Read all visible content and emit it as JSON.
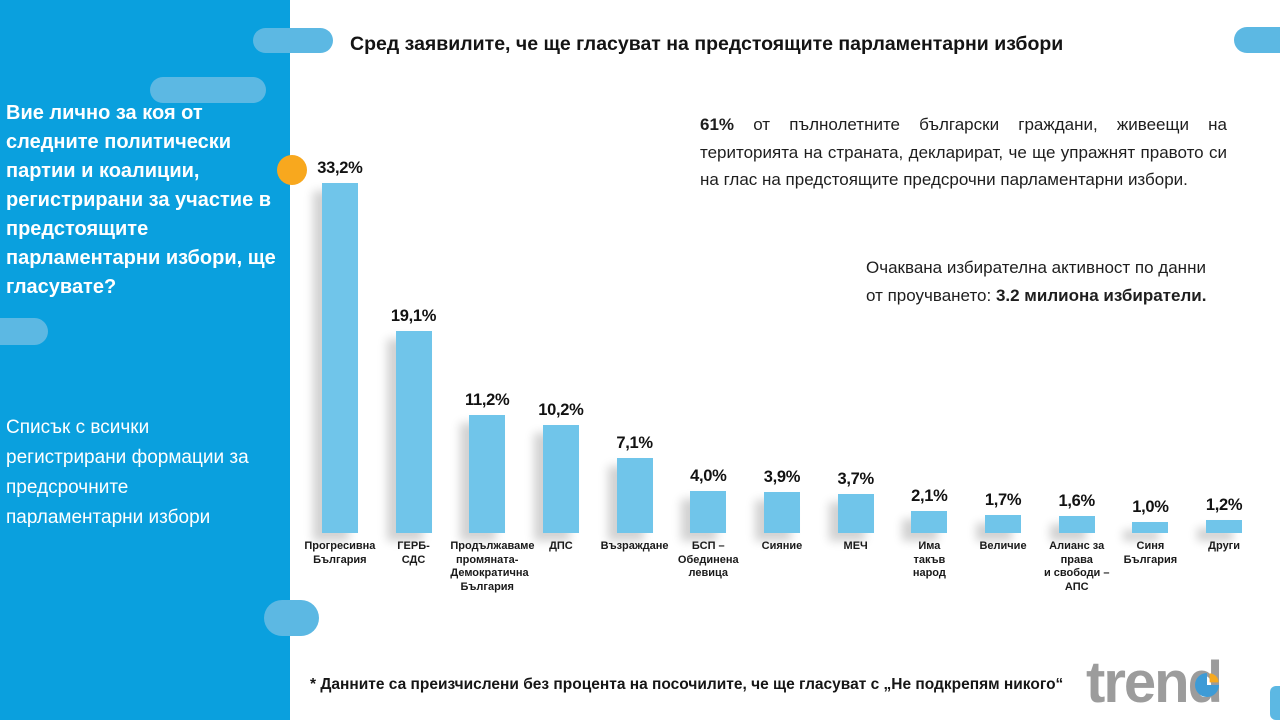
{
  "colors": {
    "sidebar_blue": "#0aa0de",
    "pill_blue": "#5cb8e3",
    "bar_blue": "#70c5ea",
    "accent_orange": "#f8a81e",
    "logo_gray": "#9c9c9c",
    "text_dark": "#1a1a1a"
  },
  "sidebar": {
    "question": "Вие лично за коя от\nследните политически\nпартии и коалиции,\nрегистрирани за участие в\nпредстоящите\nпарламентарни избори, ще\nгласувате?",
    "note": "Списък с всички\nрегистрирани формации за\nпредсрочните\nпарламентарни избори"
  },
  "header": {
    "title": "Сред заявилите, че ще гласуват на предстоящите парламентарни избори"
  },
  "summary": {
    "p1_lead": "61%",
    "p1_text": " от пълнолетните български граждани, живеещи на територията на страната, декларират, че ще упражнят правото си на глас на предстоящите предсрочни парламентарни избори.",
    "p2_text": "Очаквана избирателна активност по данни\nот проучването: ",
    "p2_bold": "3.2 милиона избиратели."
  },
  "footnote": "* Данните са преизчислени без процента на посочилите, че ще гласуват с „Не подкрепям никого“",
  "logo": {
    "brand": "trend"
  },
  "chart_data": {
    "type": "bar",
    "title": "Сред заявилите, че ще гласуват на предстоящите парламентарни избори",
    "unit": "%",
    "categories": [
      "Прогресивна\nБългария",
      "ГЕРБ-\nСДС",
      "Продължаваме\nпромяната-\nДемократична\nБългария",
      "ДПС",
      "Възраждане",
      "БСП –\nОбединена\nлевица",
      "Сияние",
      "МЕЧ",
      "Има\nтакъв\nнарод",
      "Величие",
      "Алианс за права\nи свободи – АПС",
      "Синя\nБългария",
      "Други"
    ],
    "values": [
      33.2,
      19.1,
      11.2,
      10.2,
      7.1,
      4.0,
      3.9,
      3.7,
      2.1,
      1.7,
      1.6,
      1.0,
      1.2
    ],
    "value_labels": [
      "33,2%",
      "19,1%",
      "11,2%",
      "10,2%",
      "7,1%",
      "4,0%",
      "3,9%",
      "3,7%",
      "2,1%",
      "1,7%",
      "1,6%",
      "1,0%",
      "1,2%"
    ],
    "ylim": [
      0,
      35
    ],
    "grid": false,
    "legend": false,
    "xlabel": "",
    "ylabel": ""
  }
}
